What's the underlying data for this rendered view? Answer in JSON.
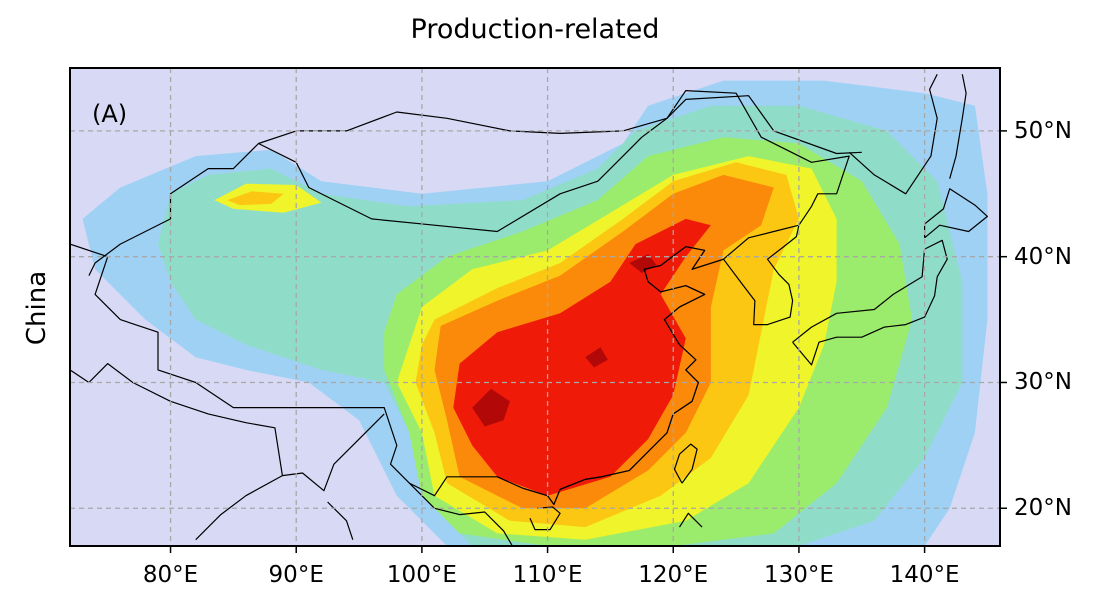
{
  "title": "Production-related",
  "panel_label": "(A)",
  "row_label": "China",
  "map": {
    "projection": "plate-carree",
    "lon_range": [
      72,
      146
    ],
    "lat_range": [
      17,
      55
    ],
    "gridlines": true,
    "gridline_style": "dashed",
    "lon_ticks": [
      {
        "value": 80,
        "label": "80°E"
      },
      {
        "value": 90,
        "label": "90°E"
      },
      {
        "value": 100,
        "label": "100°E"
      },
      {
        "value": 110,
        "label": "110°E"
      },
      {
        "value": 120,
        "label": "120°E"
      },
      {
        "value": 130,
        "label": "130°E"
      },
      {
        "value": 140,
        "label": "140°E"
      }
    ],
    "lat_ticks": [
      {
        "value": 20,
        "label": "20°N"
      },
      {
        "value": 30,
        "label": "30°N"
      },
      {
        "value": 40,
        "label": "40°N"
      },
      {
        "value": 50,
        "label": "50°N"
      }
    ],
    "contour_colors": [
      "#d8d9f5",
      "#9fd1f5",
      "#8fddc8",
      "#9bec6c",
      "#eff52a",
      "#fcc712",
      "#fb8a0b",
      "#f01a08",
      "#b30808"
    ],
    "background_color": "#d8d9f5",
    "coastline_color": "#000000",
    "gridline_color": "#a8a8a8"
  }
}
